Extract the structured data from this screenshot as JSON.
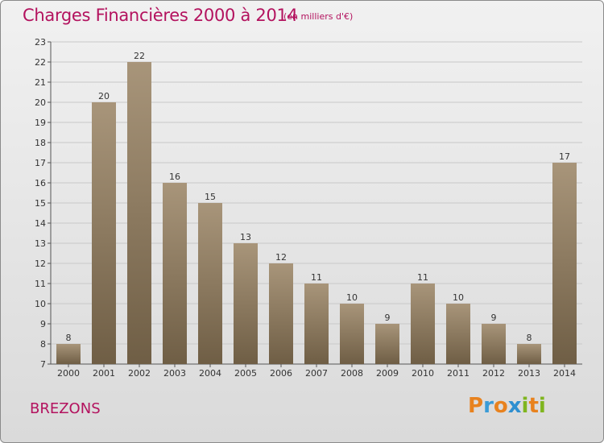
{
  "header": {
    "title": "Charges Financières 2000 à 2014",
    "subtitle": "(en milliers d'€)"
  },
  "footer": {
    "commune": "BREZONS",
    "logo_letters": [
      "P",
      "r",
      "o",
      "x",
      "i",
      "t",
      "i"
    ],
    "logo_colors": [
      "#e8821e",
      "#3a9bd6",
      "#e8821e",
      "#2f8fd0",
      "#7fb51f",
      "#e8821e",
      "#7fb51f"
    ]
  },
  "colors": {
    "title": "#b3125e",
    "bar_top": "#a8957a",
    "bar_bottom": "#6f5e45",
    "grid": "#c8c8c8"
  },
  "chart_data": {
    "type": "bar",
    "title": "Charges Financières 2000 à 2014",
    "subtitle": "(en milliers d'€)",
    "categories": [
      "2000",
      "2001",
      "2002",
      "2003",
      "2004",
      "2005",
      "2006",
      "2007",
      "2008",
      "2009",
      "2010",
      "2011",
      "2012",
      "2013",
      "2014"
    ],
    "values": [
      8,
      20,
      22,
      16,
      15,
      13,
      12,
      11,
      10,
      9,
      11,
      10,
      9,
      8,
      17
    ],
    "ylim": [
      7,
      23
    ],
    "yticks": [
      "7",
      "8",
      "9",
      "10",
      "11",
      "12",
      "13",
      "14",
      "15",
      "16",
      "17",
      "18",
      "19",
      "20",
      "21",
      "22",
      "23"
    ],
    "grid": true,
    "xlabel": "",
    "ylabel": ""
  }
}
